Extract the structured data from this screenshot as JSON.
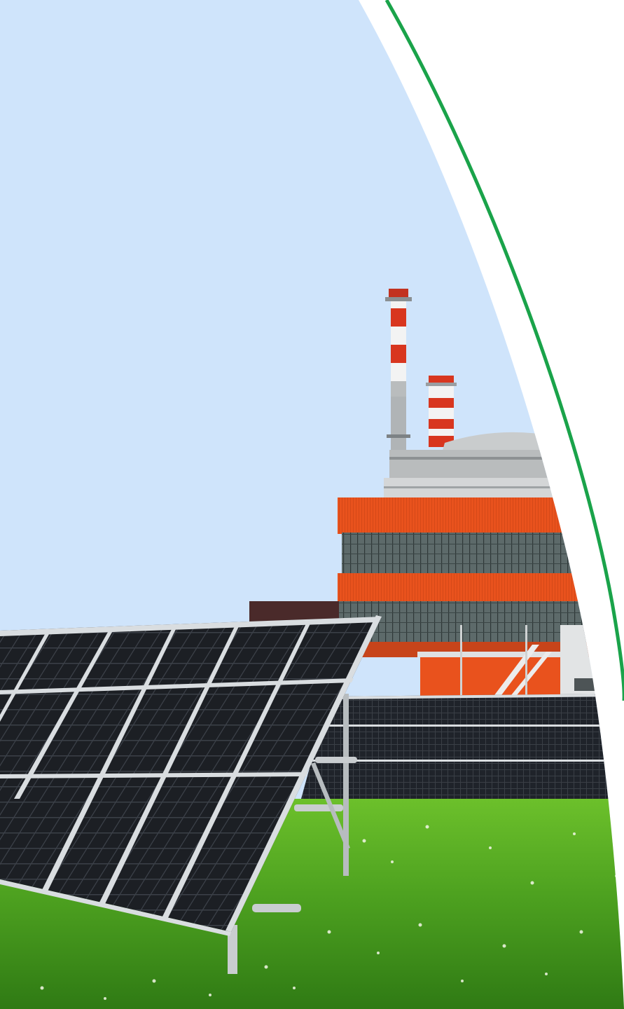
{
  "scene": {
    "description_free": true,
    "colors": {
      "sky": "#cfe4fb",
      "page_background": "#ffffff",
      "accent_arc": "#1aa34a",
      "grass_dark": "#3f8f1c",
      "grass_light": "#6cc02b",
      "building_orange": "#e9521d",
      "building_orange_dark": "#c7441a",
      "window_band": "#5d6a6a",
      "chimney_red": "#d8361f",
      "chimney_white": "#f3f3f3",
      "concrete": "#b9bcbd",
      "panel_cell": "#1c1f24",
      "panel_frame": "#d9dde0"
    },
    "icons": []
  }
}
